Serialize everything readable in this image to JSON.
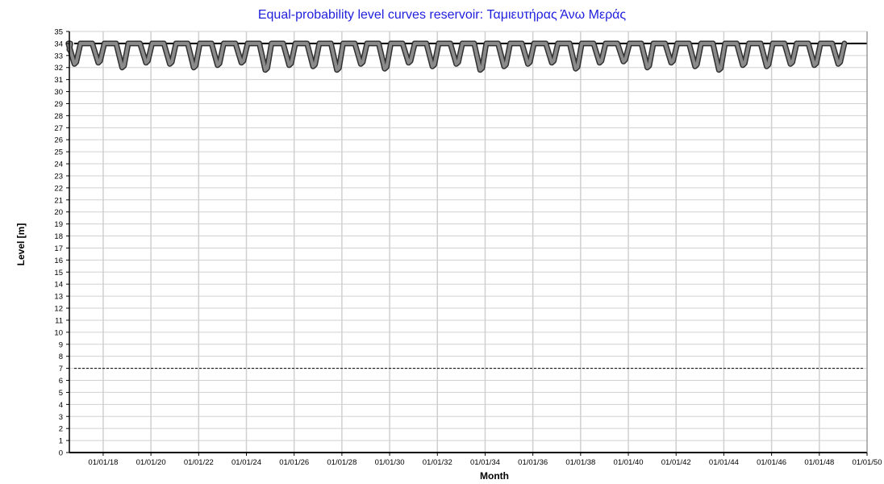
{
  "chart_data": {
    "type": "line",
    "title": "Equal-probability level curves reservoir: Ταμιευτήρας Άνω Μεράς",
    "xlabel": "Month",
    "ylabel": "Level [m]",
    "ylim": [
      0,
      35
    ],
    "y_ticks": [
      "0",
      "1",
      "2",
      "3",
      "4",
      "5",
      "6",
      "7",
      "8",
      "9",
      "10",
      "11",
      "12",
      "13",
      "14",
      "15",
      "16",
      "17",
      "18",
      "19",
      "20",
      "21",
      "22",
      "23",
      "24",
      "25",
      "26",
      "27",
      "28",
      "29",
      "30",
      "31",
      "32",
      "33",
      "34",
      "35"
    ],
    "x_range": [
      "2016-08",
      "2050-01"
    ],
    "x_ticks": [
      {
        "date": "2018-01",
        "label": "01/01/18"
      },
      {
        "date": "2020-01",
        "label": "01/01/20"
      },
      {
        "date": "2022-01",
        "label": "01/01/22"
      },
      {
        "date": "2024-01",
        "label": "01/01/24"
      },
      {
        "date": "2026-01",
        "label": "01/01/26"
      },
      {
        "date": "2028-01",
        "label": "01/01/28"
      },
      {
        "date": "2030-01",
        "label": "01/01/30"
      },
      {
        "date": "2032-01",
        "label": "01/01/32"
      },
      {
        "date": "2034-01",
        "label": "01/01/34"
      },
      {
        "date": "2036-01",
        "label": "01/01/36"
      },
      {
        "date": "2038-01",
        "label": "01/01/38"
      },
      {
        "date": "2040-01",
        "label": "01/01/40"
      },
      {
        "date": "2042-01",
        "label": "01/01/42"
      },
      {
        "date": "2044-01",
        "label": "01/01/44"
      },
      {
        "date": "2046-01",
        "label": "01/01/46"
      },
      {
        "date": "2048-01",
        "label": "01/01/48"
      },
      {
        "date": "2050-01",
        "label": "01/01/50"
      }
    ],
    "grid": true,
    "max_level": 34,
    "min_level": 7,
    "seasonal_minima": [
      32.3,
      32.4,
      32.0,
      32.4,
      32.3,
      32.0,
      32.2,
      32.4,
      31.8,
      32.2,
      32.1,
      31.8,
      32.3,
      31.9,
      32.4,
      32.1,
      32.3,
      31.8,
      32.1,
      32.3,
      32.4,
      31.9,
      32.4,
      32.5,
      32.0,
      32.4,
      32.1,
      31.8,
      32.2,
      32.1,
      32.3,
      32.2,
      32.3
    ],
    "series": [],
    "colors": {
      "title": "#1f1fdd",
      "curve": "#8a8a8a",
      "curve_outline": "#303030",
      "limit": "#000000",
      "grid": "#d0d0d0"
    }
  }
}
